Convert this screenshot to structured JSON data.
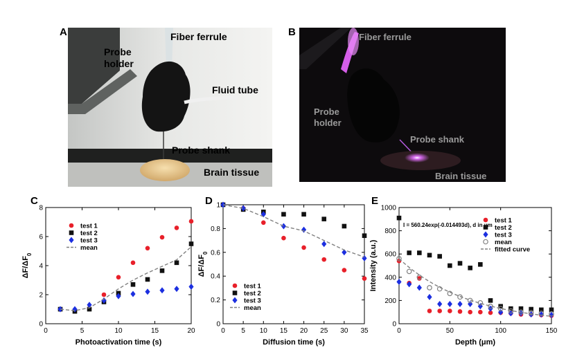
{
  "panels": {
    "A": {
      "letter": "A",
      "labels": {
        "fiber_ferrule": "Fiber ferrule",
        "probe_holder": "Probe\nholder",
        "fluid_tube": "Fluid tube",
        "probe_shank": "Probe shank",
        "brain_tissue": "Brain tissue"
      }
    },
    "B": {
      "letter": "B",
      "labels": {
        "fiber_ferrule": "Fiber ferrule",
        "probe_holder": "Probe\nholder",
        "probe_shank": "Probe shank",
        "brain_tissue": "Brain tissue"
      }
    },
    "C": {
      "letter": "C"
    },
    "D": {
      "letter": "D"
    },
    "E": {
      "letter": "E"
    }
  },
  "chart_data": [
    {
      "id": "C",
      "type": "scatter",
      "xlabel": "Photoactivation time (s)",
      "ylabel": "ΔF/ΔF0",
      "xlim": [
        0,
        20
      ],
      "ylim": [
        0,
        8
      ],
      "xticks": [
        0,
        5,
        10,
        15,
        20
      ],
      "yticks": [
        0,
        2,
        4,
        6,
        8
      ],
      "legend_position": "top-left",
      "series": [
        {
          "name": "test 1",
          "marker": "circle",
          "color": "#e8202a",
          "x": [
            2,
            4,
            6,
            8,
            10,
            12,
            14,
            16,
            18,
            20
          ],
          "y": [
            1.0,
            0.9,
            1.05,
            2.0,
            3.2,
            4.2,
            5.2,
            5.95,
            6.6,
            7.05
          ]
        },
        {
          "name": "test 2",
          "marker": "square",
          "color": "#111111",
          "x": [
            2,
            4,
            6,
            8,
            10,
            12,
            14,
            16,
            18,
            20
          ],
          "y": [
            1.0,
            0.85,
            1.0,
            1.5,
            2.1,
            2.7,
            3.05,
            3.65,
            4.2,
            5.5
          ]
        },
        {
          "name": "test 3",
          "marker": "diamond",
          "color": "#1c2fe0",
          "x": [
            2,
            4,
            6,
            8,
            10,
            12,
            14,
            16,
            18,
            20
          ],
          "y": [
            1.0,
            1.0,
            1.3,
            1.6,
            1.9,
            2.05,
            2.2,
            2.3,
            2.4,
            2.55
          ]
        },
        {
          "name": "mean",
          "marker": "dashed-line",
          "color": "#808080",
          "x": [
            2,
            4,
            6,
            8,
            10,
            12,
            14,
            16,
            18,
            20
          ],
          "y": [
            1.0,
            0.9,
            1.1,
            1.7,
            2.4,
            3.0,
            3.5,
            3.95,
            4.4,
            5.3
          ]
        }
      ]
    },
    {
      "id": "D",
      "type": "scatter",
      "xlabel": "Diffusion time (s)",
      "ylabel": "ΔF/ΔF0",
      "xlim": [
        0,
        35
      ],
      "ylim": [
        0,
        1
      ],
      "xticks": [
        0,
        5,
        10,
        15,
        20,
        25,
        30,
        35
      ],
      "yticks": [
        0,
        0.2,
        0.4,
        0.6,
        0.8,
        1
      ],
      "legend_position": "bottom-left",
      "series": [
        {
          "name": "test 1",
          "marker": "circle",
          "color": "#e8202a",
          "x": [
            0,
            5,
            10,
            15,
            20,
            25,
            30,
            35
          ],
          "y": [
            1.0,
            0.97,
            0.85,
            0.72,
            0.64,
            0.54,
            0.45,
            0.38
          ]
        },
        {
          "name": "test 2",
          "marker": "square",
          "color": "#111111",
          "x": [
            0,
            5,
            10,
            15,
            20,
            25,
            30,
            35
          ],
          "y": [
            1.0,
            0.96,
            0.94,
            0.92,
            0.92,
            0.88,
            0.82,
            0.74
          ]
        },
        {
          "name": "test 3",
          "marker": "diamond",
          "color": "#1c2fe0",
          "x": [
            0,
            5,
            10,
            15,
            20,
            25,
            30,
            35
          ],
          "y": [
            1.0,
            0.97,
            0.92,
            0.82,
            0.79,
            0.67,
            0.6,
            0.55
          ]
        },
        {
          "name": "mean",
          "marker": "dashed-line",
          "color": "#808080",
          "x": [
            0,
            5,
            10,
            15,
            20,
            25,
            30,
            35
          ],
          "y": [
            1.0,
            0.97,
            0.9,
            0.82,
            0.78,
            0.7,
            0.62,
            0.56
          ]
        }
      ]
    },
    {
      "id": "E",
      "type": "scatter",
      "xlabel": "Depth (μm)",
      "ylabel": "Intensity (a.u.)",
      "xlim": [
        0,
        150
      ],
      "ylim": [
        0,
        1000
      ],
      "xticks": [
        0,
        50,
        100,
        150
      ],
      "yticks": [
        0,
        200,
        400,
        600,
        800,
        1000
      ],
      "annotation": "I = 560.24exp(-0.014493d), d in μm",
      "legend_position": "top-right",
      "series": [
        {
          "name": "test 1",
          "marker": "circle",
          "color": "#e8202a",
          "x": [
            0,
            10,
            20,
            30,
            40,
            50,
            60,
            70,
            80,
            90,
            100,
            110,
            120,
            130,
            140,
            150
          ],
          "y": [
            540,
            350,
            390,
            110,
            110,
            110,
            105,
            100,
            100,
            95,
            95,
            90,
            80,
            80,
            75,
            70
          ]
        },
        {
          "name": "test 2",
          "marker": "square",
          "color": "#111111",
          "x": [
            0,
            10,
            20,
            30,
            40,
            50,
            60,
            70,
            80,
            90,
            100,
            110,
            120,
            130,
            140,
            150
          ],
          "y": [
            910,
            610,
            610,
            590,
            580,
            500,
            520,
            480,
            510,
            200,
            150,
            130,
            130,
            125,
            120,
            120
          ]
        },
        {
          "name": "test 3",
          "marker": "diamond",
          "color": "#1c2fe0",
          "x": [
            0,
            10,
            20,
            30,
            40,
            50,
            60,
            70,
            80,
            90,
            100,
            110,
            120,
            130,
            140,
            150
          ],
          "y": [
            360,
            340,
            310,
            230,
            170,
            170,
            170,
            170,
            150,
            130,
            100,
            90,
            90,
            80,
            80,
            75
          ]
        },
        {
          "name": "mean",
          "marker": "open-circle",
          "color": "#808080",
          "x": [
            0,
            10,
            20,
            30,
            40,
            50,
            60,
            70,
            80,
            90,
            100,
            110,
            120,
            130,
            140,
            150
          ],
          "y": [
            560,
            450,
            400,
            310,
            300,
            260,
            230,
            200,
            180,
            150,
            130,
            110,
            100,
            95,
            90,
            85
          ]
        },
        {
          "name": "fitted curve",
          "marker": "dashed-line",
          "color": "#808080",
          "fit": {
            "a": 560.24,
            "b": -0.014493
          }
        }
      ]
    }
  ]
}
